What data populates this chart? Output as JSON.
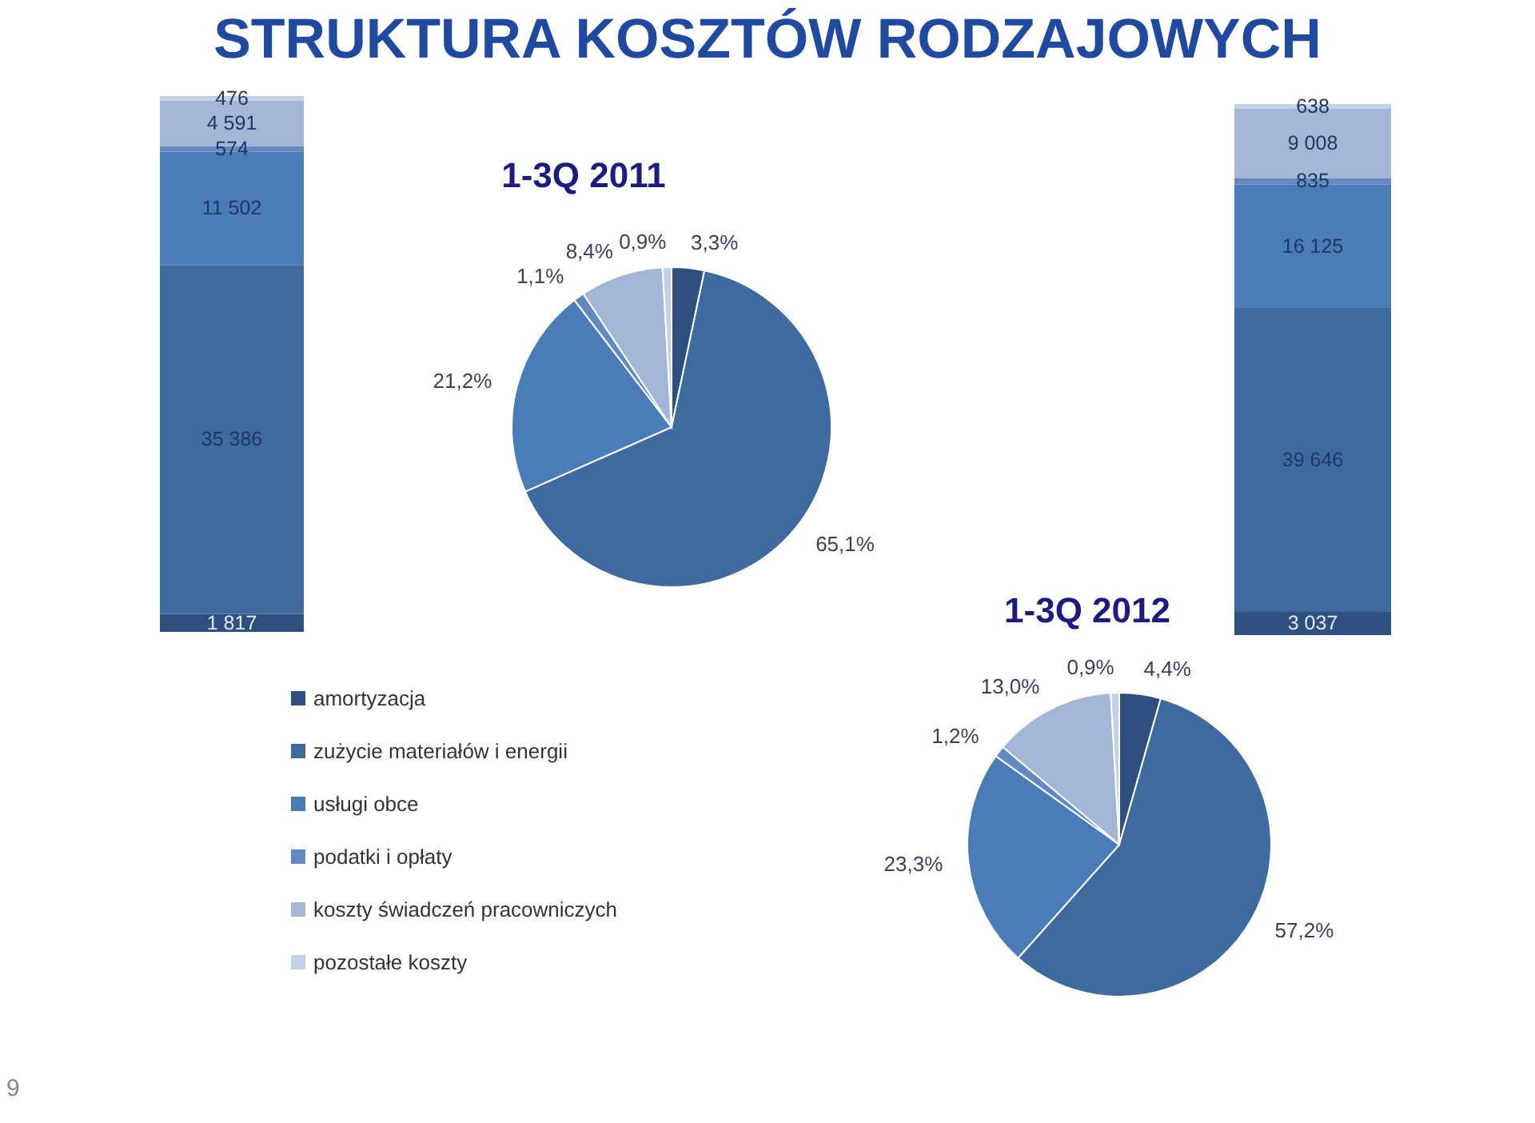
{
  "chart_data": [
    {
      "type": "bar",
      "title": "STRUKTURA KOSZTÓW RODZAJOWYCH",
      "categories": [
        null
      ],
      "stacked": true,
      "series": [
        {
          "color": "#2f4f7f",
          "values": [
            1817
          ],
          "value_labels": [
            "1 817"
          ]
        },
        {
          "color": "#3f6a9f",
          "values": [
            35386
          ],
          "value_labels": [
            "35 386"
          ]
        },
        {
          "color": "#4a7cb8",
          "values": [
            11502
          ],
          "value_labels": [
            "11 502"
          ]
        },
        {
          "color": "#6389c2",
          "values": [
            574
          ],
          "value_labels": [
            "574"
          ]
        },
        {
          "color": "#a3b6d5",
          "values": [
            4591
          ],
          "value_labels": [
            "4 591"
          ]
        },
        {
          "color": "#c4d0e6",
          "values": [
            476
          ],
          "value_labels": [
            "476"
          ]
        }
      ]
    },
    {
      "type": "pie",
      "title": "1-3Q 2011",
      "categories": [
        null,
        null,
        null,
        null,
        null,
        null
      ],
      "values": [
        3.3,
        65.1,
        21.2,
        1.1,
        8.4,
        0.9
      ],
      "value_labels": [
        "3,3%",
        "65,1%",
        "21,2%",
        "1,1%",
        "8,4%",
        "0,9%"
      ],
      "colors": [
        "#2f4f7f",
        "#3f6a9f",
        "#4a7cb8",
        "#6389c2",
        "#a3b6d5",
        "#c4d0e6"
      ]
    },
    {
      "type": "bar",
      "categories": [
        null
      ],
      "stacked": true,
      "series": [
        {
          "color": "#2f4f7f",
          "values": [
            3037
          ],
          "value_labels": [
            "3 037"
          ]
        },
        {
          "color": "#3f6a9f",
          "values": [
            39646
          ],
          "value_labels": [
            "39 646"
          ]
        },
        {
          "color": "#4a7cb8",
          "values": [
            16125
          ],
          "value_labels": [
            "16 125"
          ]
        },
        {
          "color": "#6389c2",
          "values": [
            835
          ],
          "value_labels": [
            "835"
          ]
        },
        {
          "color": "#a3b6d5",
          "values": [
            9008
          ],
          "value_labels": [
            "9 008"
          ]
        },
        {
          "color": "#c4d0e6",
          "values": [
            638
          ],
          "value_labels": [
            "638"
          ]
        }
      ]
    },
    {
      "type": "pie",
      "title": "1-3Q 2012",
      "categories": [
        "amortyzacja",
        "zużycie materiałów i energii",
        "usługi obce",
        "podatki i opłaty",
        "koszty świadczeń pracowniczych",
        "pozostałe koszty"
      ],
      "values": [
        4.4,
        57.2,
        23.3,
        1.2,
        13.0,
        0.9
      ],
      "value_labels": [
        "4,4%",
        "57,2%",
        "23,3%",
        "1,2%",
        "13,0%",
        "0,9%"
      ],
      "colors": [
        "#2f4f7f",
        "#3f6a9f",
        "#4a7cb8",
        "#6389c2",
        "#a3b6d5",
        "#c4d0e6"
      ],
      "legend": "left",
      "annotations": [
        "9"
      ]
    }
  ]
}
